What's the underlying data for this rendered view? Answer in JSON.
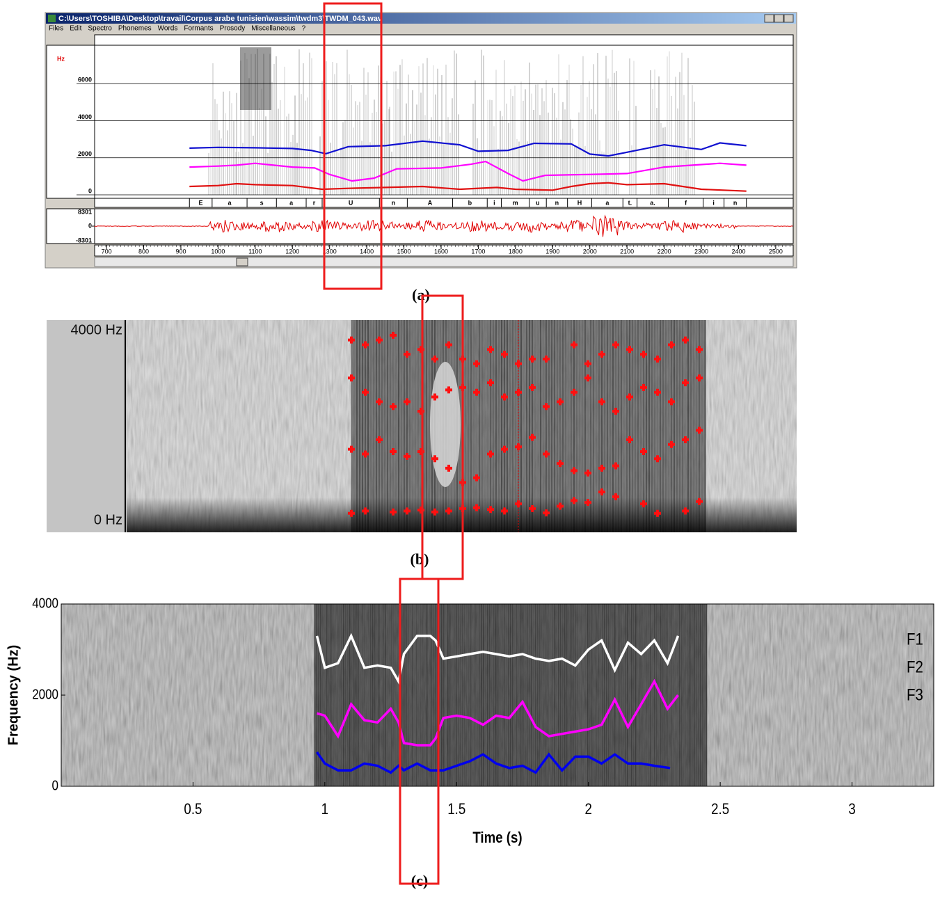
{
  "chart_data": [
    {
      "type": "line",
      "window_title": "C:\\Users\\TOSHIBA\\Desktop\\travail\\Corpus arabe tunisien\\wassim\\twdm3\\TWDM_043.wav",
      "menu": [
        "Files",
        "Edit",
        "Spectro",
        "Phonemes",
        "Words",
        "Formants",
        "Prosody",
        "Miscellaneous",
        "?"
      ],
      "y_unit": "Hz",
      "xlim": [
        668,
        2547
      ],
      "xticks": [
        700,
        800,
        900,
        1000,
        1100,
        1200,
        1300,
        1400,
        1500,
        1600,
        1700,
        1800,
        1900,
        2000,
        2100,
        2200,
        2300,
        2400,
        2500
      ],
      "ylim": [
        0,
        8000
      ],
      "yticks": [
        0,
        2000,
        4000,
        6000
      ],
      "y2lim": [
        -8301,
        8301
      ],
      "y2ticks": [
        8301,
        0,
        -8301
      ],
      "phonemes": [
        "E",
        "a",
        "s",
        "a",
        "r",
        "U",
        "n",
        "A",
        "b",
        "i",
        "m",
        "u",
        "n",
        "H",
        "a",
        "t.",
        "a.",
        "f",
        "i",
        "n"
      ],
      "phoneme_bounds": [
        923,
        984,
        1078,
        1157,
        1237,
        1280,
        1434,
        1509,
        1631,
        1724,
        1762,
        1837,
        1883,
        1940,
        2005,
        2089,
        2127,
        2211,
        2305,
        2361,
        2421
      ],
      "series": [
        {
          "color": "#1010d0",
          "x": [
            923,
            1000,
            1100,
            1200,
            1250,
            1290,
            1350,
            1450,
            1550,
            1650,
            1700,
            1780,
            1850,
            1950,
            2000,
            2050,
            2100,
            2200,
            2300,
            2350,
            2421
          ],
          "values": [
            2520,
            2560,
            2540,
            2500,
            2400,
            2220,
            2600,
            2650,
            2900,
            2700,
            2350,
            2400,
            2780,
            2750,
            2200,
            2100,
            2300,
            2700,
            2450,
            2800,
            2650
          ]
        },
        {
          "color": "#ff00ff",
          "x": [
            923,
            1000,
            1050,
            1100,
            1200,
            1260,
            1300,
            1360,
            1420,
            1480,
            1600,
            1680,
            1720,
            1780,
            1820,
            1880,
            2000,
            2100,
            2200,
            2350,
            2421
          ],
          "values": [
            1500,
            1550,
            1600,
            1700,
            1500,
            1450,
            1100,
            750,
            900,
            1400,
            1450,
            1650,
            1800,
            1150,
            750,
            1050,
            1100,
            1150,
            1500,
            1700,
            1600
          ]
        },
        {
          "color": "#e01010",
          "x": [
            923,
            1000,
            1050,
            1100,
            1200,
            1280,
            1350,
            1450,
            1550,
            1650,
            1750,
            1800,
            1900,
            1950,
            2000,
            2050,
            2100,
            2200,
            2300,
            2421
          ],
          "values": [
            450,
            500,
            600,
            550,
            500,
            300,
            350,
            400,
            450,
            300,
            400,
            300,
            250,
            450,
            600,
            650,
            550,
            600,
            300,
            200
          ]
        }
      ],
      "caption": "(a)"
    },
    {
      "type": "scatter",
      "ylim": [
        0,
        4000
      ],
      "yticks": [
        {
          "value": 0,
          "label": "0 Hz"
        },
        {
          "value": 4000,
          "label": "4000 Hz"
        }
      ],
      "series": [
        {
          "color": "#ff1010",
          "values": [
            150,
            200,
            null,
            180,
            200,
            220,
            180,
            200,
            250,
            270,
            230,
            200,
            350,
            250,
            160,
            300,
            420,
            380,
            600,
            500,
            null,
            350,
            150,
            null,
            200,
            400
          ]
        },
        {
          "color": "#ff1010",
          "values": [
            1500,
            1400,
            1700,
            1450,
            1350,
            1450,
            1300,
            1100,
            800,
            900,
            1400,
            1500,
            1550,
            1750,
            1400,
            1200,
            1050,
            1000,
            1100,
            1150,
            1700,
            1450,
            1300,
            1600,
            1700,
            1900
          ]
        },
        {
          "color": "#ff1010",
          "values": [
            3000,
            2700,
            2500,
            2400,
            2500,
            2300,
            2600,
            2750,
            2800,
            2700,
            2900,
            2600,
            2700,
            2800,
            2400,
            2500,
            2700,
            3000,
            2500,
            2300,
            2600,
            2800,
            2700,
            2500,
            2900,
            3000
          ]
        },
        {
          "color": "#ff1010",
          "values": [
            3800,
            3700,
            3800,
            3900,
            3500,
            3600,
            3400,
            3700,
            3400,
            3300,
            3600,
            3500,
            3300,
            3400,
            3400,
            null,
            3700,
            3300,
            3500,
            3700,
            3600,
            3500,
            3400,
            3700,
            3800,
            3600
          ]
        }
      ],
      "caption": "(b)"
    },
    {
      "type": "line",
      "x_label": "Time (s)",
      "y_label": "Frequency (Hz)",
      "xlim": [
        0,
        3.31
      ],
      "xticks": [
        0.5,
        1,
        1.5,
        2,
        2.5,
        3
      ],
      "ylim": [
        0,
        4000
      ],
      "yticks": [
        0,
        2000,
        4000
      ],
      "series": [
        {
          "name": "F1",
          "color": "#ffffff",
          "x": [
            0.97,
            1.0,
            1.05,
            1.1,
            1.15,
            1.2,
            1.25,
            1.28,
            1.3,
            1.35,
            1.4,
            1.42,
            1.45,
            1.5,
            1.55,
            1.6,
            1.65,
            1.7,
            1.75,
            1.8,
            1.85,
            1.9,
            1.95,
            2.0,
            2.05,
            2.1,
            2.15,
            2.2,
            2.25,
            2.3,
            2.34
          ],
          "values": [
            3300,
            2600,
            2700,
            3300,
            2600,
            2650,
            2600,
            2300,
            2900,
            3300,
            3300,
            3200,
            2800,
            2850,
            2900,
            2950,
            2900,
            2850,
            2900,
            2800,
            2750,
            2800,
            2650,
            3000,
            3200,
            2550,
            3150,
            2900,
            3200,
            2700,
            3300
          ]
        },
        {
          "name": "F2",
          "color": "#ff00ff",
          "x": [
            0.97,
            1.0,
            1.05,
            1.1,
            1.15,
            1.2,
            1.25,
            1.28,
            1.3,
            1.35,
            1.4,
            1.42,
            1.45,
            1.5,
            1.55,
            1.6,
            1.65,
            1.7,
            1.75,
            1.8,
            1.85,
            1.9,
            1.95,
            2.0,
            2.05,
            2.1,
            2.15,
            2.2,
            2.25,
            2.3,
            2.34
          ],
          "values": [
            1600,
            1550,
            1100,
            1800,
            1450,
            1400,
            1700,
            1400,
            950,
            900,
            900,
            1050,
            1500,
            1550,
            1500,
            1350,
            1550,
            1500,
            1850,
            1300,
            1100,
            1150,
            1200,
            1250,
            1350,
            1900,
            1300,
            1800,
            2300,
            1700,
            2000
          ]
        },
        {
          "name": "F3",
          "color": "#0000ee",
          "x": [
            0.97,
            1.0,
            1.05,
            1.1,
            1.15,
            1.2,
            1.25,
            1.28,
            1.3,
            1.35,
            1.4,
            1.42,
            1.45,
            1.5,
            1.55,
            1.6,
            1.65,
            1.7,
            1.75,
            1.8,
            1.85,
            1.9,
            1.95,
            2.0,
            2.05,
            2.1,
            2.15,
            2.2,
            2.25,
            2.31
          ],
          "values": [
            750,
            500,
            350,
            350,
            500,
            450,
            300,
            450,
            350,
            500,
            350,
            350,
            350,
            450,
            550,
            700,
            500,
            400,
            450,
            300,
            700,
            350,
            650,
            650,
            500,
            700,
            500,
            500,
            450,
            400
          ]
        }
      ],
      "caption": "(c)"
    }
  ]
}
